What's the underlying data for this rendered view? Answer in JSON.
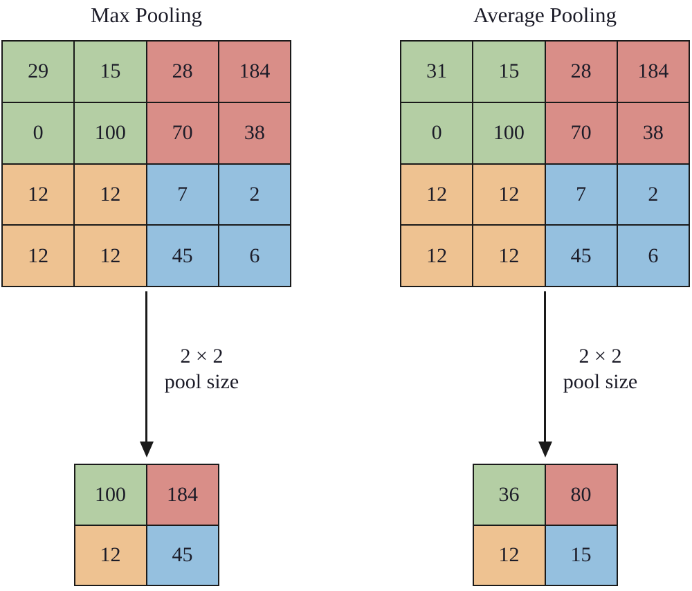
{
  "colors": {
    "quadrant_green": "#b4cea4",
    "quadrant_red": "#d98e88",
    "quadrant_orange": "#eec291",
    "quadrant_blue": "#95c0df",
    "line": "#1a1a1a",
    "text": "#1c1c28"
  },
  "panels": [
    {
      "id": "max-pooling",
      "title": "Max Pooling",
      "input_grid": [
        [
          29,
          15,
          28,
          184
        ],
        [
          0,
          100,
          70,
          38
        ],
        [
          12,
          12,
          7,
          2
        ],
        [
          12,
          12,
          45,
          6
        ]
      ],
      "pool_label_line1": "2 × 2",
      "pool_label_line2": "pool size",
      "output_grid": [
        [
          100,
          184
        ],
        [
          12,
          45
        ]
      ]
    },
    {
      "id": "average-pooling",
      "title": "Average Pooling",
      "input_grid": [
        [
          31,
          15,
          28,
          184
        ],
        [
          0,
          100,
          70,
          38
        ],
        [
          12,
          12,
          7,
          2
        ],
        [
          12,
          12,
          45,
          6
        ]
      ],
      "pool_label_line1": "2 × 2",
      "pool_label_line2": "pool size",
      "output_grid": [
        [
          36,
          80
        ],
        [
          12,
          15
        ]
      ]
    }
  ]
}
